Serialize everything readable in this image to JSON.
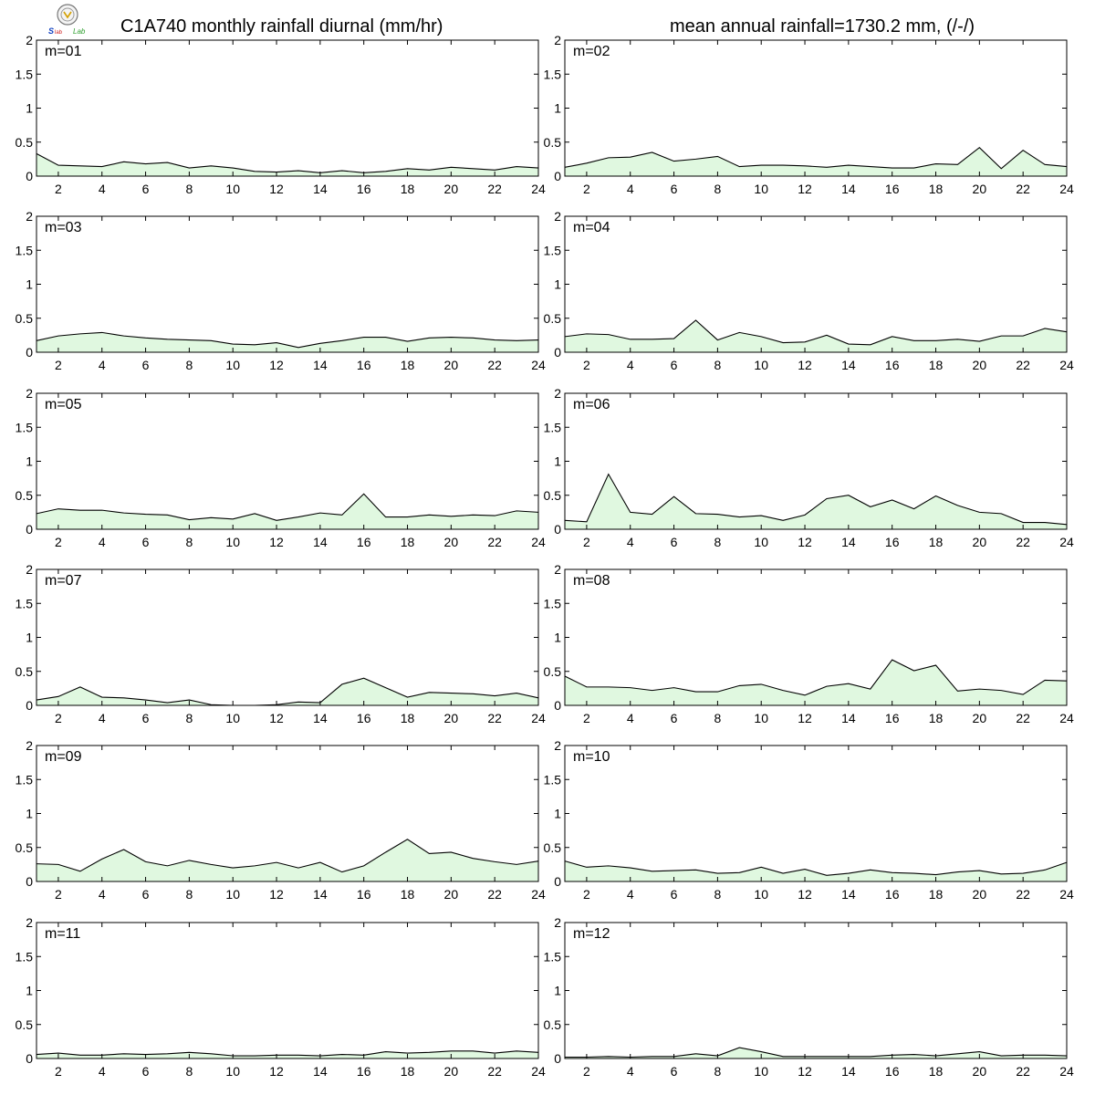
{
  "header": {
    "title_left": "C1A740 monthly rainfall diurnal (mm/hr)",
    "title_right": "mean annual rainfall=1730.2 mm, (/-/)",
    "logo": "lab-logo"
  },
  "colors": {
    "fill": "#e0f8e0",
    "line": "#000000",
    "frame": "#000000"
  },
  "chart_data": {
    "type": "area",
    "x": [
      1,
      2,
      3,
      4,
      5,
      6,
      7,
      8,
      9,
      10,
      11,
      12,
      13,
      14,
      15,
      16,
      17,
      18,
      19,
      20,
      21,
      22,
      23,
      24
    ],
    "x_ticks": [
      2,
      4,
      6,
      8,
      10,
      12,
      14,
      16,
      18,
      20,
      22,
      24
    ],
    "xlim": [
      1,
      24
    ],
    "ylim": [
      0,
      2
    ],
    "y_ticks": [
      0,
      0.5,
      1,
      1.5,
      2
    ],
    "y_tick_labels": [
      "0",
      "0.5",
      "1",
      "1.5",
      "2"
    ],
    "panels": [
      {
        "label": "m=01",
        "values": [
          0.33,
          0.16,
          0.15,
          0.14,
          0.21,
          0.18,
          0.2,
          0.12,
          0.15,
          0.12,
          0.07,
          0.06,
          0.08,
          0.05,
          0.08,
          0.05,
          0.07,
          0.11,
          0.09,
          0.13,
          0.11,
          0.09,
          0.14,
          0.12
        ]
      },
      {
        "label": "m=02",
        "values": [
          0.13,
          0.19,
          0.27,
          0.28,
          0.35,
          0.22,
          0.25,
          0.29,
          0.14,
          0.16,
          0.16,
          0.15,
          0.13,
          0.16,
          0.14,
          0.12,
          0.12,
          0.18,
          0.17,
          0.42,
          0.11,
          0.38,
          0.17,
          0.14
        ]
      },
      {
        "label": "m=03",
        "values": [
          0.17,
          0.24,
          0.27,
          0.29,
          0.24,
          0.21,
          0.19,
          0.18,
          0.17,
          0.12,
          0.11,
          0.14,
          0.07,
          0.13,
          0.17,
          0.22,
          0.22,
          0.16,
          0.21,
          0.22,
          0.21,
          0.18,
          0.17,
          0.18
        ]
      },
      {
        "label": "m=04",
        "values": [
          0.23,
          0.27,
          0.26,
          0.19,
          0.19,
          0.2,
          0.47,
          0.18,
          0.29,
          0.23,
          0.14,
          0.15,
          0.25,
          0.12,
          0.11,
          0.23,
          0.17,
          0.17,
          0.19,
          0.16,
          0.24,
          0.24,
          0.35,
          0.3
        ]
      },
      {
        "label": "m=05",
        "values": [
          0.23,
          0.3,
          0.28,
          0.28,
          0.24,
          0.22,
          0.21,
          0.14,
          0.17,
          0.15,
          0.23,
          0.13,
          0.18,
          0.24,
          0.21,
          0.52,
          0.18,
          0.18,
          0.21,
          0.19,
          0.21,
          0.2,
          0.27,
          0.25
        ]
      },
      {
        "label": "m=06",
        "values": [
          0.13,
          0.11,
          0.81,
          0.25,
          0.22,
          0.48,
          0.23,
          0.22,
          0.18,
          0.2,
          0.13,
          0.21,
          0.45,
          0.5,
          0.33,
          0.43,
          0.3,
          0.49,
          0.35,
          0.25,
          0.23,
          0.1,
          0.1,
          0.07
        ]
      },
      {
        "label": "m=07",
        "values": [
          0.08,
          0.13,
          0.27,
          0.12,
          0.11,
          0.08,
          0.04,
          0.08,
          0.01,
          0.0,
          0.0,
          0.01,
          0.05,
          0.04,
          0.31,
          0.4,
          0.26,
          0.12,
          0.19,
          0.18,
          0.17,
          0.14,
          0.18,
          0.11
        ]
      },
      {
        "label": "m=08",
        "values": [
          0.43,
          0.27,
          0.27,
          0.26,
          0.22,
          0.26,
          0.2,
          0.2,
          0.29,
          0.31,
          0.22,
          0.15,
          0.28,
          0.32,
          0.24,
          0.67,
          0.51,
          0.59,
          0.21,
          0.24,
          0.22,
          0.16,
          0.37,
          0.36
        ]
      },
      {
        "label": "m=09",
        "values": [
          0.26,
          0.25,
          0.15,
          0.33,
          0.47,
          0.29,
          0.23,
          0.31,
          0.25,
          0.2,
          0.23,
          0.28,
          0.2,
          0.28,
          0.14,
          0.23,
          0.43,
          0.62,
          0.41,
          0.43,
          0.34,
          0.29,
          0.25,
          0.3
        ]
      },
      {
        "label": "m=10",
        "values": [
          0.3,
          0.21,
          0.23,
          0.2,
          0.15,
          0.16,
          0.17,
          0.12,
          0.13,
          0.21,
          0.12,
          0.18,
          0.09,
          0.12,
          0.17,
          0.13,
          0.12,
          0.1,
          0.14,
          0.16,
          0.11,
          0.12,
          0.17,
          0.28
        ]
      },
      {
        "label": "m=11",
        "values": [
          0.06,
          0.08,
          0.05,
          0.05,
          0.07,
          0.06,
          0.07,
          0.09,
          0.07,
          0.04,
          0.04,
          0.05,
          0.05,
          0.04,
          0.06,
          0.05,
          0.1,
          0.08,
          0.09,
          0.11,
          0.11,
          0.08,
          0.11,
          0.09
        ]
      },
      {
        "label": "m=12",
        "values": [
          0.02,
          0.02,
          0.03,
          0.02,
          0.03,
          0.03,
          0.07,
          0.04,
          0.16,
          0.1,
          0.03,
          0.03,
          0.03,
          0.03,
          0.03,
          0.05,
          0.06,
          0.04,
          0.07,
          0.1,
          0.04,
          0.05,
          0.05,
          0.04
        ]
      }
    ]
  }
}
